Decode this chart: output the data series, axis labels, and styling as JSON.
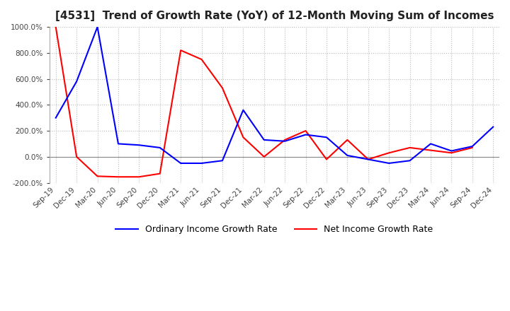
{
  "title": "[4531]  Trend of Growth Rate (YoY) of 12-Month Moving Sum of Incomes",
  "ylim": [
    -200,
    1000
  ],
  "yticks": [
    -200,
    0,
    200,
    400,
    600,
    800,
    1000
  ],
  "background_color": "#ffffff",
  "grid_color": "#bbbbbb",
  "legend_labels": [
    "Ordinary Income Growth Rate",
    "Net Income Growth Rate"
  ],
  "legend_colors": [
    "#0000ff",
    "#ff0000"
  ],
  "x_labels": [
    "Sep-19",
    "Dec-19",
    "Mar-20",
    "Jun-20",
    "Sep-20",
    "Dec-20",
    "Mar-21",
    "Jun-21",
    "Sep-21",
    "Dec-21",
    "Mar-22",
    "Jun-22",
    "Sep-22",
    "Dec-22",
    "Mar-23",
    "Jun-23",
    "Sep-23",
    "Dec-23",
    "Mar-24",
    "Jun-24",
    "Sep-24",
    "Dec-24"
  ],
  "ordinary_income": [
    300,
    580,
    1000,
    100,
    90,
    70,
    -50,
    -50,
    -30,
    360,
    130,
    120,
    170,
    150,
    10,
    -20,
    -50,
    -30,
    100,
    45,
    80,
    230
  ],
  "net_income": [
    1000,
    0,
    -150,
    -155,
    -155,
    -130,
    820,
    750,
    530,
    150,
    0,
    130,
    200,
    -20,
    130,
    -20,
    30,
    70,
    50,
    30,
    70,
    null
  ]
}
